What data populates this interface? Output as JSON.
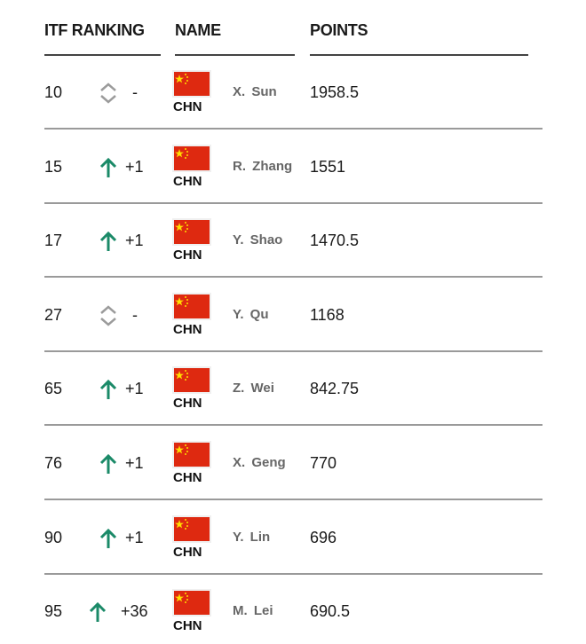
{
  "header": {
    "rank": "ITF RANKING",
    "name": "NAME",
    "points": "POINTS"
  },
  "colors": {
    "up": "#1b8a68",
    "neutral": "#9b9b9b",
    "flag_red": "#de2910",
    "flag_star": "#ffde00"
  },
  "rows": [
    {
      "rank": "10",
      "trend": "neutral",
      "change": "-",
      "country": "CHN",
      "name": "X. Sun",
      "points": "1958.5"
    },
    {
      "rank": "15",
      "trend": "up",
      "change": "+1",
      "country": "CHN",
      "name": "R. Zhang",
      "points": "1551"
    },
    {
      "rank": "17",
      "trend": "up",
      "change": "+1",
      "country": "CHN",
      "name": "Y. Shao",
      "points": "1470.5"
    },
    {
      "rank": "27",
      "trend": "neutral",
      "change": "-",
      "country": "CHN",
      "name": "Y. Qu",
      "points": "1168"
    },
    {
      "rank": "65",
      "trend": "up",
      "change": "+1",
      "country": "CHN",
      "name": "Z. Wei",
      "points": "842.75"
    },
    {
      "rank": "76",
      "trend": "up",
      "change": "+1",
      "country": "CHN",
      "name": "X. Geng",
      "points": "770"
    },
    {
      "rank": "90",
      "trend": "up",
      "change": "+1",
      "country": "CHN",
      "name": "Y. Lin",
      "points": "696"
    },
    {
      "rank": "95",
      "trend": "up",
      "change": "+36",
      "country": "CHN",
      "name": "M. Lei",
      "points": "690.5"
    }
  ]
}
